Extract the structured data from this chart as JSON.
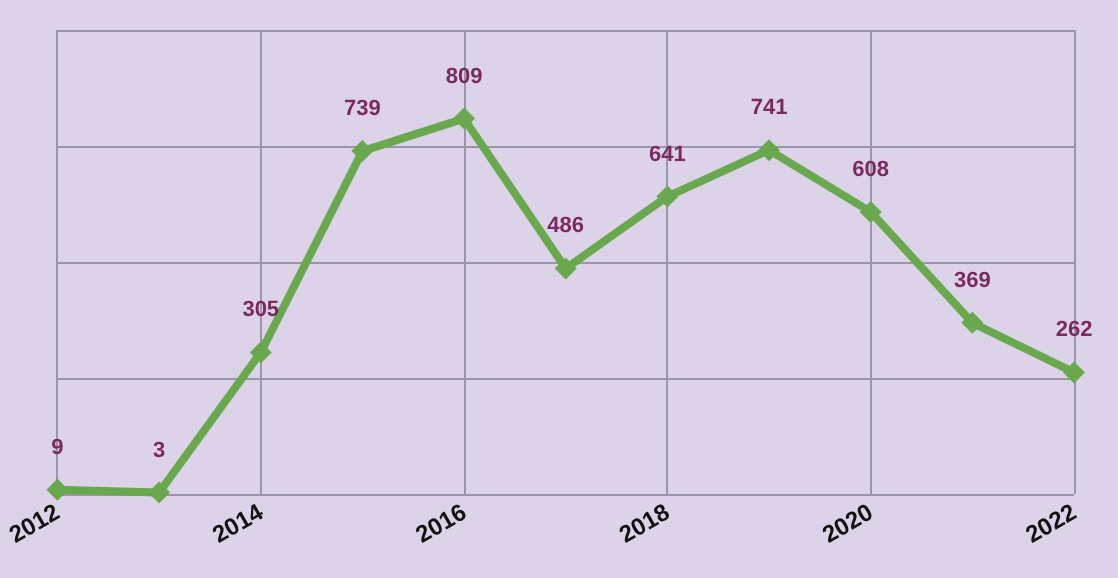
{
  "chart_data": {
    "type": "line",
    "x": [
      2012,
      2013,
      2014,
      2015,
      2016,
      2017,
      2018,
      2019,
      2020,
      2021,
      2022
    ],
    "series": [
      {
        "color": "#6aa84f",
        "values": [
          9,
          3,
          305,
          739,
          809,
          486,
          641,
          741,
          608,
          369,
          262
        ]
      }
    ],
    "xlim": [
      2012,
      2022
    ],
    "xticks": [
      2012,
      2014,
      2016,
      2018,
      2020,
      2022
    ],
    "ylim": [
      0,
      1000
    ],
    "yticks": [
      {
        "value": 0,
        "label": null
      },
      {
        "value": 250,
        "label": null
      },
      {
        "value": 500,
        "label": null
      },
      {
        "value": 750,
        "label": null
      },
      {
        "value": 1000,
        "label": null
      }
    ],
    "tick_labels": "x",
    "grid": true,
    "marker": "diamond",
    "line_style": "solid",
    "data_labels": true
  }
}
